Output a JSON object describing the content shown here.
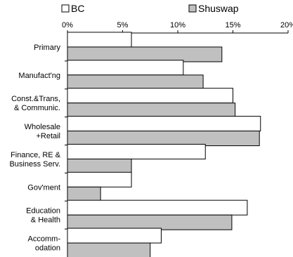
{
  "chart_data": {
    "type": "bar",
    "orientation": "horizontal",
    "categories": [
      [
        "Primary"
      ],
      [
        "Manufact'ng"
      ],
      [
        "Const.&Trans,",
        "& Communic."
      ],
      [
        "Wholesale",
        "+Retail"
      ],
      [
        "Finance, RE &",
        "Business Serv."
      ],
      [
        "Gov'ment"
      ],
      [
        "Education",
        "& Health"
      ],
      [
        "Accomm-",
        "odation"
      ]
    ],
    "series": [
      {
        "name": "BC",
        "color": "#ffffff",
        "values": [
          5.8,
          10.5,
          15.0,
          17.5,
          12.5,
          5.8,
          16.3,
          8.5
        ]
      },
      {
        "name": "Shuswap",
        "color": "#c0c0c0",
        "values": [
          14.0,
          12.3,
          15.2,
          17.4,
          5.8,
          3.0,
          14.9,
          7.5
        ]
      }
    ],
    "xlim": [
      0,
      20
    ],
    "xticks": [
      "0%",
      "5%",
      "10%",
      "15%",
      "20%"
    ],
    "xtick_values": [
      0,
      5,
      10,
      15,
      20
    ],
    "axis_position": "top",
    "legend_position": "top",
    "grid": false
  }
}
